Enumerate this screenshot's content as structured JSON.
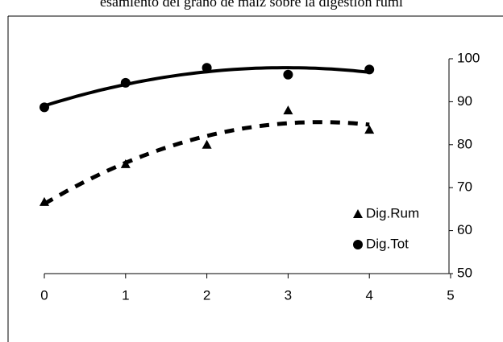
{
  "chart_data": {
    "type": "scatter",
    "title": "esamiento del grano de maíz sobre la digestión rumi",
    "x": [
      0,
      1,
      2,
      3,
      4
    ],
    "series": [
      {
        "name": "Dig.Rum",
        "color": "#000000",
        "marker": "triangle",
        "trendline": "polynomial",
        "trendline_order": 2,
        "line_style": "dashed",
        "values": [
          66.7,
          75.5,
          80.0,
          88.0,
          83.5
        ]
      },
      {
        "name": "Dig.Tot",
        "color": "#000000",
        "marker": "circle",
        "trendline": "polynomial",
        "trendline_order": 2,
        "line_style": "solid",
        "values": [
          88.7,
          94.4,
          97.9,
          96.3,
          97.5
        ]
      }
    ],
    "xlim": [
      0,
      5
    ],
    "xticks": [
      0,
      1,
      2,
      3,
      4,
      5
    ],
    "ylim": [
      50,
      100
    ],
    "yticks": [
      50,
      60,
      70,
      80,
      90,
      100
    ],
    "y_axis_side": "right",
    "grid": false,
    "legend": "lower right"
  }
}
